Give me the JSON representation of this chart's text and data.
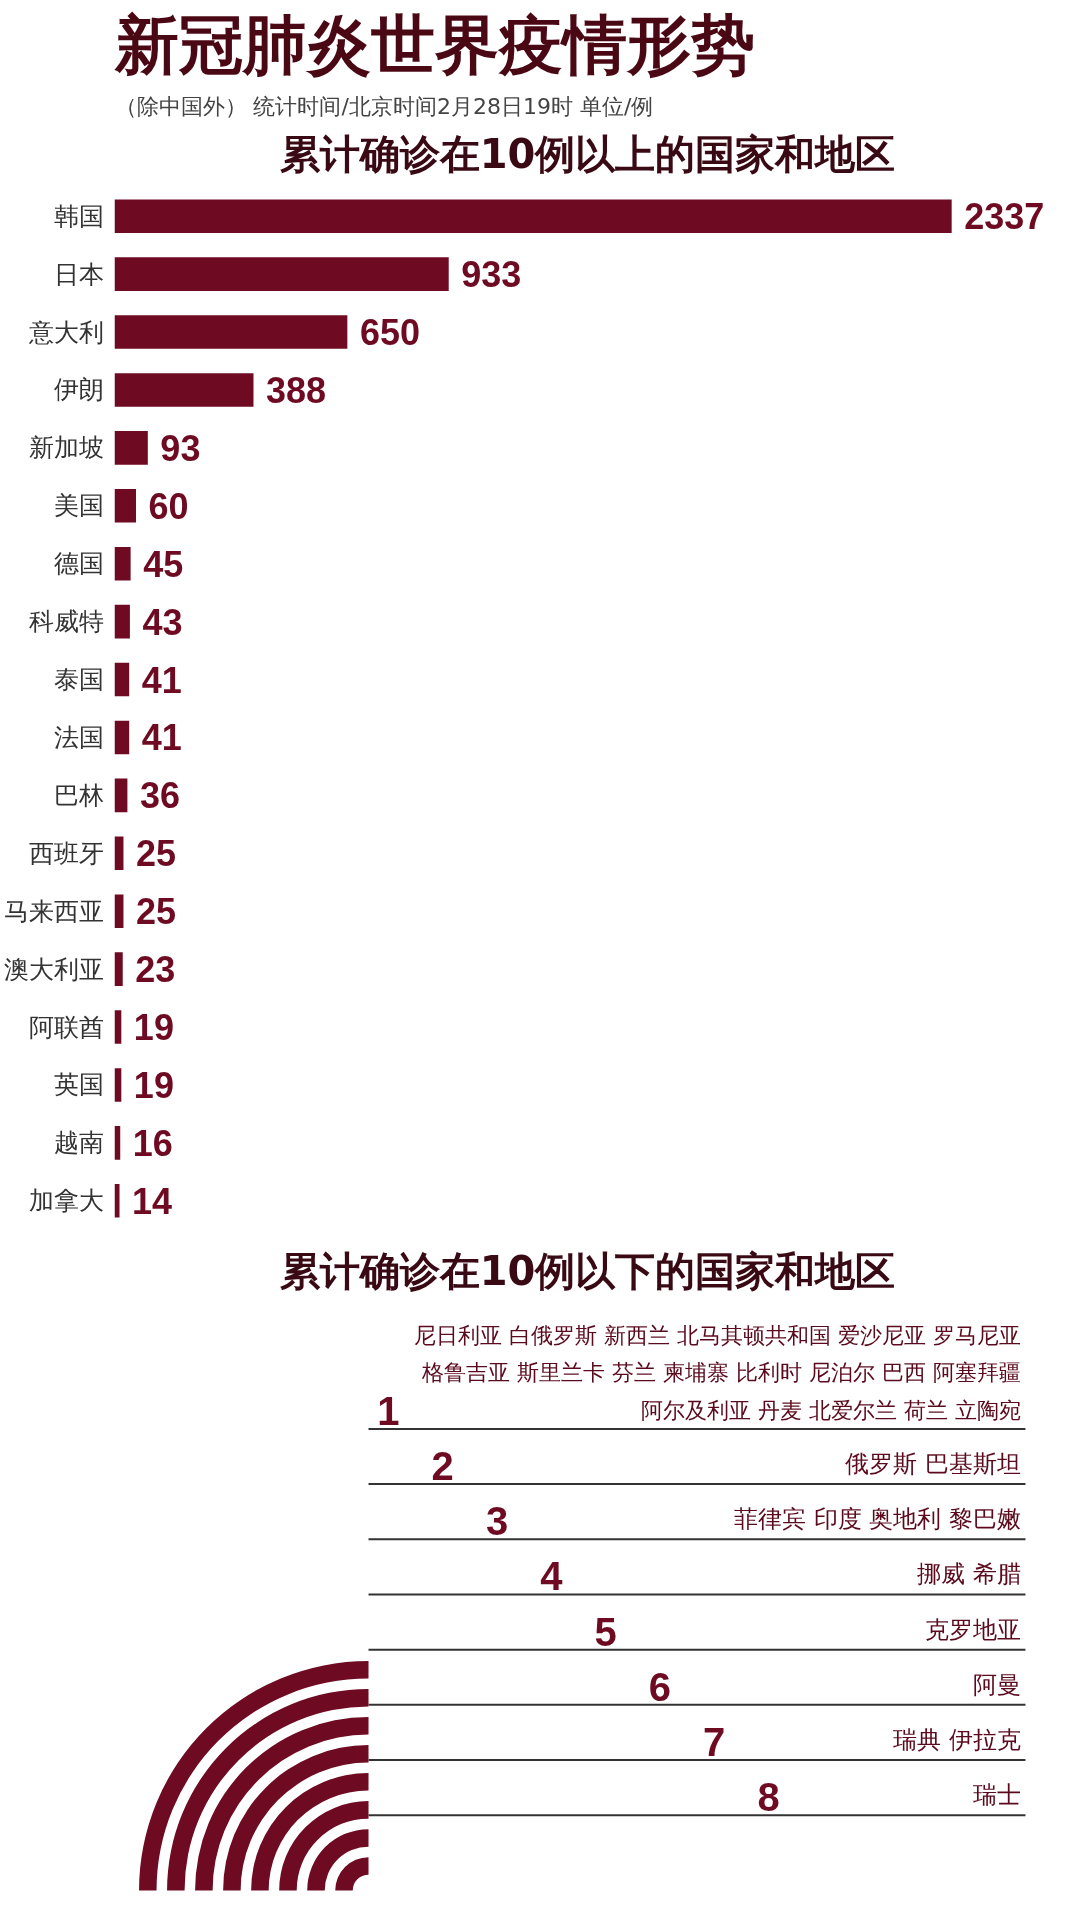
{
  "chart_data": [
    {
      "type": "bar",
      "orientation": "horizontal",
      "title": "新冠肺炎世界疫情形势",
      "subtitle": "（除中国外）",
      "annotations": [
        "统计时间/北京时间2月28日19时",
        "单位/例",
        "累计确诊在10例以上的国家和地区"
      ],
      "categories": [
        "韩国",
        "日本",
        "意大利",
        "伊朗",
        "新加坡",
        "美国",
        "德国",
        "科威特",
        "泰国",
        "法国",
        "巴林",
        "西班牙",
        "马来西亚",
        "澳大利亚",
        "阿联酋",
        "英国",
        "越南",
        "加拿大"
      ],
      "values": [
        2337,
        933,
        650,
        388,
        93,
        60,
        45,
        43,
        41,
        41,
        36,
        25,
        25,
        23,
        19,
        19,
        16,
        14
      ],
      "color": "#6e0b22",
      "data_labels": true,
      "tick_labels": "y"
    },
    {
      "type": "other",
      "title": "累计确诊在10例以下的国家和地区",
      "categories": [
        "尼日利亚 白俄罗斯 新西兰 北马其顿共和国 爱沙尼亚 罗马尼亚格鲁吉亚 斯里兰卡 芬兰 柬埔寨 比利时 尼泊尔 巴西 阿塞拜疆阿尔及利亚 丹麦 北爱尔兰 荷兰 立陶宛",
        "俄罗斯 巴基斯坦",
        "菲律宾 印度 奥地利 黎巴嫩",
        "挪威 希腊",
        "克罗地亚",
        "阿曼",
        "瑞典 伊拉克",
        "瑞士"
      ],
      "values": [
        1,
        2,
        3,
        4,
        5,
        6,
        7,
        8
      ],
      "color": "#6e0b22",
      "data_labels": true
    }
  ]
}
